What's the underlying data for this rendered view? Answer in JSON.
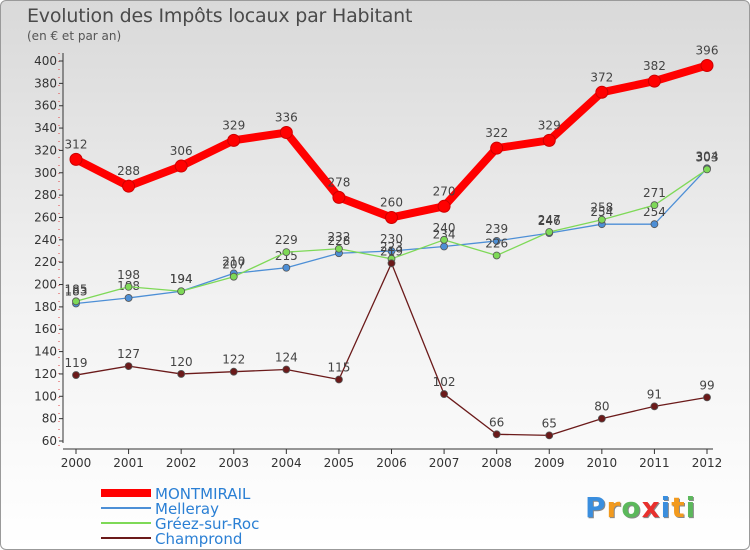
{
  "chart_data": {
    "type": "line",
    "title": "Evolution des Impôts locaux par Habitant",
    "subtitle": "(en € et par an)",
    "xlabel": "",
    "ylabel": "",
    "categories": [
      "2000",
      "2001",
      "2002",
      "2003",
      "2004",
      "2005",
      "2006",
      "2007",
      "2008",
      "2009",
      "2010",
      "2011",
      "2012"
    ],
    "ylim": [
      60,
      400
    ],
    "yticks": [
      60,
      80,
      100,
      120,
      140,
      160,
      180,
      200,
      220,
      240,
      260,
      280,
      300,
      320,
      340,
      360,
      380,
      400
    ],
    "grid": false,
    "series": [
      {
        "name": "MONTMIRAIL",
        "color": "#ff0000",
        "values": [
          312,
          288,
          306,
          329,
          336,
          278,
          260,
          270,
          322,
          329,
          372,
          382,
          396
        ]
      },
      {
        "name": "Melleray",
        "color": "#4d8fd6",
        "values": [
          183,
          188,
          194,
          210,
          215,
          228,
          230,
          234,
          239,
          246,
          254,
          254,
          304
        ]
      },
      {
        "name": "Gréez-sur-Roc",
        "color": "#7ed957",
        "values": [
          185,
          198,
          194,
          207,
          229,
          232,
          223,
          240,
          226,
          247,
          258,
          271,
          303
        ]
      },
      {
        "name": "Champrond",
        "color": "#6b1a1a",
        "values": [
          119,
          127,
          120,
          122,
          124,
          115,
          219,
          102,
          66,
          65,
          80,
          91,
          99
        ]
      }
    ]
  },
  "brand": {
    "letters": [
      "P",
      "r",
      "o",
      "x",
      "i",
      "t",
      "i"
    ],
    "colors": [
      "#3a8ede",
      "#f29a1e",
      "#5cb85c",
      "#e8302d",
      "#3a8ede",
      "#f29a1e",
      "#5cb85c"
    ]
  }
}
